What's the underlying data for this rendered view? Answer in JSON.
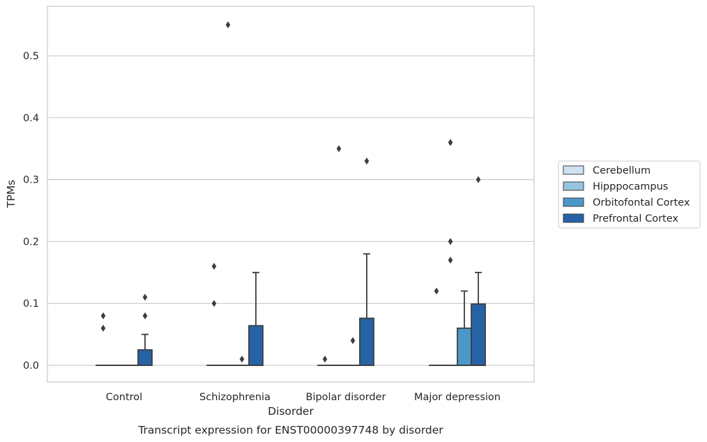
{
  "chart_data": {
    "type": "box",
    "caption": "Transcript expression for ENST00000397748 by disorder",
    "xlabel": "Disorder",
    "ylabel": "TPMs",
    "ylim": [
      -0.027,
      0.58
    ],
    "yticks": [
      0.0,
      0.1,
      0.2,
      0.3,
      0.4,
      0.5
    ],
    "ytick_labels": [
      "0.0",
      "0.1",
      "0.2",
      "0.3",
      "0.4",
      "0.5"
    ],
    "grid": "horizontal",
    "legend_position": "right",
    "categories": [
      "Control",
      "Schizophrenia",
      "Bipolar disorder",
      "Major depression"
    ],
    "series": [
      {
        "name": "Cerebellum",
        "color": "#d0e1f2",
        "boxes": [
          {
            "category": "Control",
            "q1": 0.0,
            "median": 0.0,
            "q3": 0.0,
            "whisker_low": 0.0,
            "whisker_high": 0.0,
            "outliers": [
              0.06,
              0.08
            ]
          },
          {
            "category": "Schizophrenia",
            "q1": 0.0,
            "median": 0.0,
            "q3": 0.0,
            "whisker_low": 0.0,
            "whisker_high": 0.0,
            "outliers": [
              0.1,
              0.16
            ]
          },
          {
            "category": "Bipolar disorder",
            "q1": 0.0,
            "median": 0.0,
            "q3": 0.0,
            "whisker_low": 0.0,
            "whisker_high": 0.0,
            "outliers": [
              0.01
            ]
          },
          {
            "category": "Major depression",
            "q1": 0.0,
            "median": 0.0,
            "q3": 0.0,
            "whisker_low": 0.0,
            "whisker_high": 0.0,
            "outliers": [
              0.12
            ]
          }
        ]
      },
      {
        "name": "Hipppocampus",
        "color": "#94c4df",
        "boxes": [
          {
            "category": "Control",
            "q1": 0.0,
            "median": 0.0,
            "q3": 0.0,
            "whisker_low": 0.0,
            "whisker_high": 0.0,
            "outliers": []
          },
          {
            "category": "Schizophrenia",
            "q1": 0.0,
            "median": 0.0,
            "q3": 0.0,
            "whisker_low": 0.0,
            "whisker_high": 0.0,
            "outliers": [
              0.55
            ]
          },
          {
            "category": "Bipolar disorder",
            "q1": 0.0,
            "median": 0.0,
            "q3": 0.0,
            "whisker_low": 0.0,
            "whisker_high": 0.0,
            "outliers": [
              0.35
            ]
          },
          {
            "category": "Major depression",
            "q1": 0.0,
            "median": 0.0,
            "q3": 0.0,
            "whisker_low": 0.0,
            "whisker_high": 0.0,
            "outliers": [
              0.36,
              0.2,
              0.17
            ]
          }
        ]
      },
      {
        "name": "Orbitofontal Cortex",
        "color": "#4a98c9",
        "boxes": [
          {
            "category": "Control",
            "q1": 0.0,
            "median": 0.0,
            "q3": 0.0,
            "whisker_low": 0.0,
            "whisker_high": 0.0,
            "outliers": []
          },
          {
            "category": "Schizophrenia",
            "q1": 0.0,
            "median": 0.0,
            "q3": 0.0,
            "whisker_low": 0.0,
            "whisker_high": 0.0,
            "outliers": [
              0.01
            ]
          },
          {
            "category": "Bipolar disorder",
            "q1": 0.0,
            "median": 0.0,
            "q3": 0.0,
            "whisker_low": 0.0,
            "whisker_high": 0.0,
            "outliers": [
              0.04
            ]
          },
          {
            "category": "Major depression",
            "q1": 0.0,
            "median": 0.0,
            "q3": 0.06,
            "whisker_low": 0.0,
            "whisker_high": 0.12,
            "outliers": []
          }
        ]
      },
      {
        "name": "Prefrontal Cortex",
        "color": "#2563a6",
        "boxes": [
          {
            "category": "Control",
            "q1": 0.0,
            "median": 0.0,
            "q3": 0.025,
            "whisker_low": 0.0,
            "whisker_high": 0.05,
            "outliers": [
              0.08,
              0.11
            ]
          },
          {
            "category": "Schizophrenia",
            "q1": 0.0,
            "median": 0.0,
            "q3": 0.064,
            "whisker_low": 0.0,
            "whisker_high": 0.15,
            "outliers": []
          },
          {
            "category": "Bipolar disorder",
            "q1": 0.0,
            "median": 0.0,
            "q3": 0.076,
            "whisker_low": 0.0,
            "whisker_high": 0.18,
            "outliers": [
              0.33
            ]
          },
          {
            "category": "Major depression",
            "q1": 0.0,
            "median": 0.0,
            "q3": 0.099,
            "whisker_low": 0.0,
            "whisker_high": 0.15,
            "outliers": [
              0.3
            ]
          }
        ]
      }
    ],
    "edge_color": "#3d3d3d",
    "grid_color": "#cccccc",
    "frame_color": "#cccccc"
  }
}
